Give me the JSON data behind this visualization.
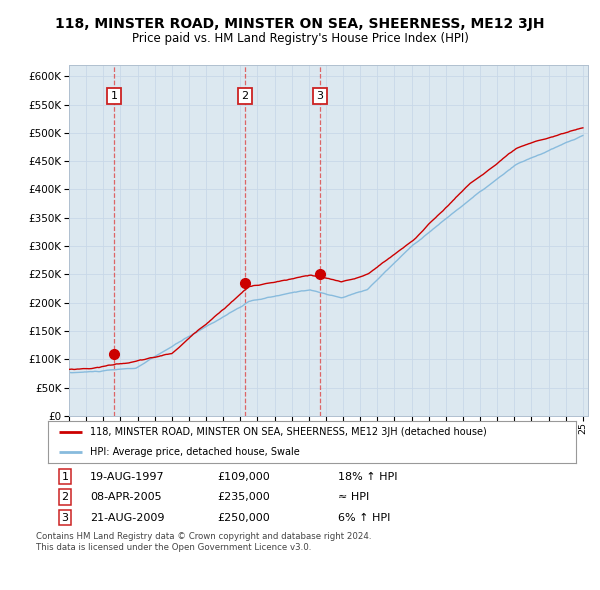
{
  "title": "118, MINSTER ROAD, MINSTER ON SEA, SHEERNESS, ME12 3JH",
  "subtitle": "Price paid vs. HM Land Registry's House Price Index (HPI)",
  "background_color": "#f5f5f5",
  "plot_bg_color": "#dce8f0",
  "sale_dates_numeric": [
    1997.635,
    2005.27,
    2009.635
  ],
  "sale_prices": [
    109000,
    235000,
    250000
  ],
  "sale_labels": [
    "1",
    "2",
    "3"
  ],
  "legend_line1": "118, MINSTER ROAD, MINSTER ON SEA, SHEERNESS, ME12 3JH (detached house)",
  "legend_line2": "HPI: Average price, detached house, Swale",
  "table_rows": [
    [
      "1",
      "19-AUG-1997",
      "£109,000",
      "18% ↑ HPI"
    ],
    [
      "2",
      "08-APR-2005",
      "£235,000",
      "≈ HPI"
    ],
    [
      "3",
      "21-AUG-2009",
      "£250,000",
      "6% ↑ HPI"
    ]
  ],
  "footer": "Contains HM Land Registry data © Crown copyright and database right 2024.\nThis data is licensed under the Open Government Licence v3.0.",
  "ylim": [
    0,
    620000
  ],
  "yticks": [
    0,
    50000,
    100000,
    150000,
    200000,
    250000,
    300000,
    350000,
    400000,
    450000,
    500000,
    550000,
    600000
  ],
  "red_line_color": "#cc0000",
  "blue_line_color": "#88bbdd",
  "sale_dot_color": "#cc0000",
  "grid_color": "#c8d8e8",
  "spine_color": "#b0c0d0"
}
